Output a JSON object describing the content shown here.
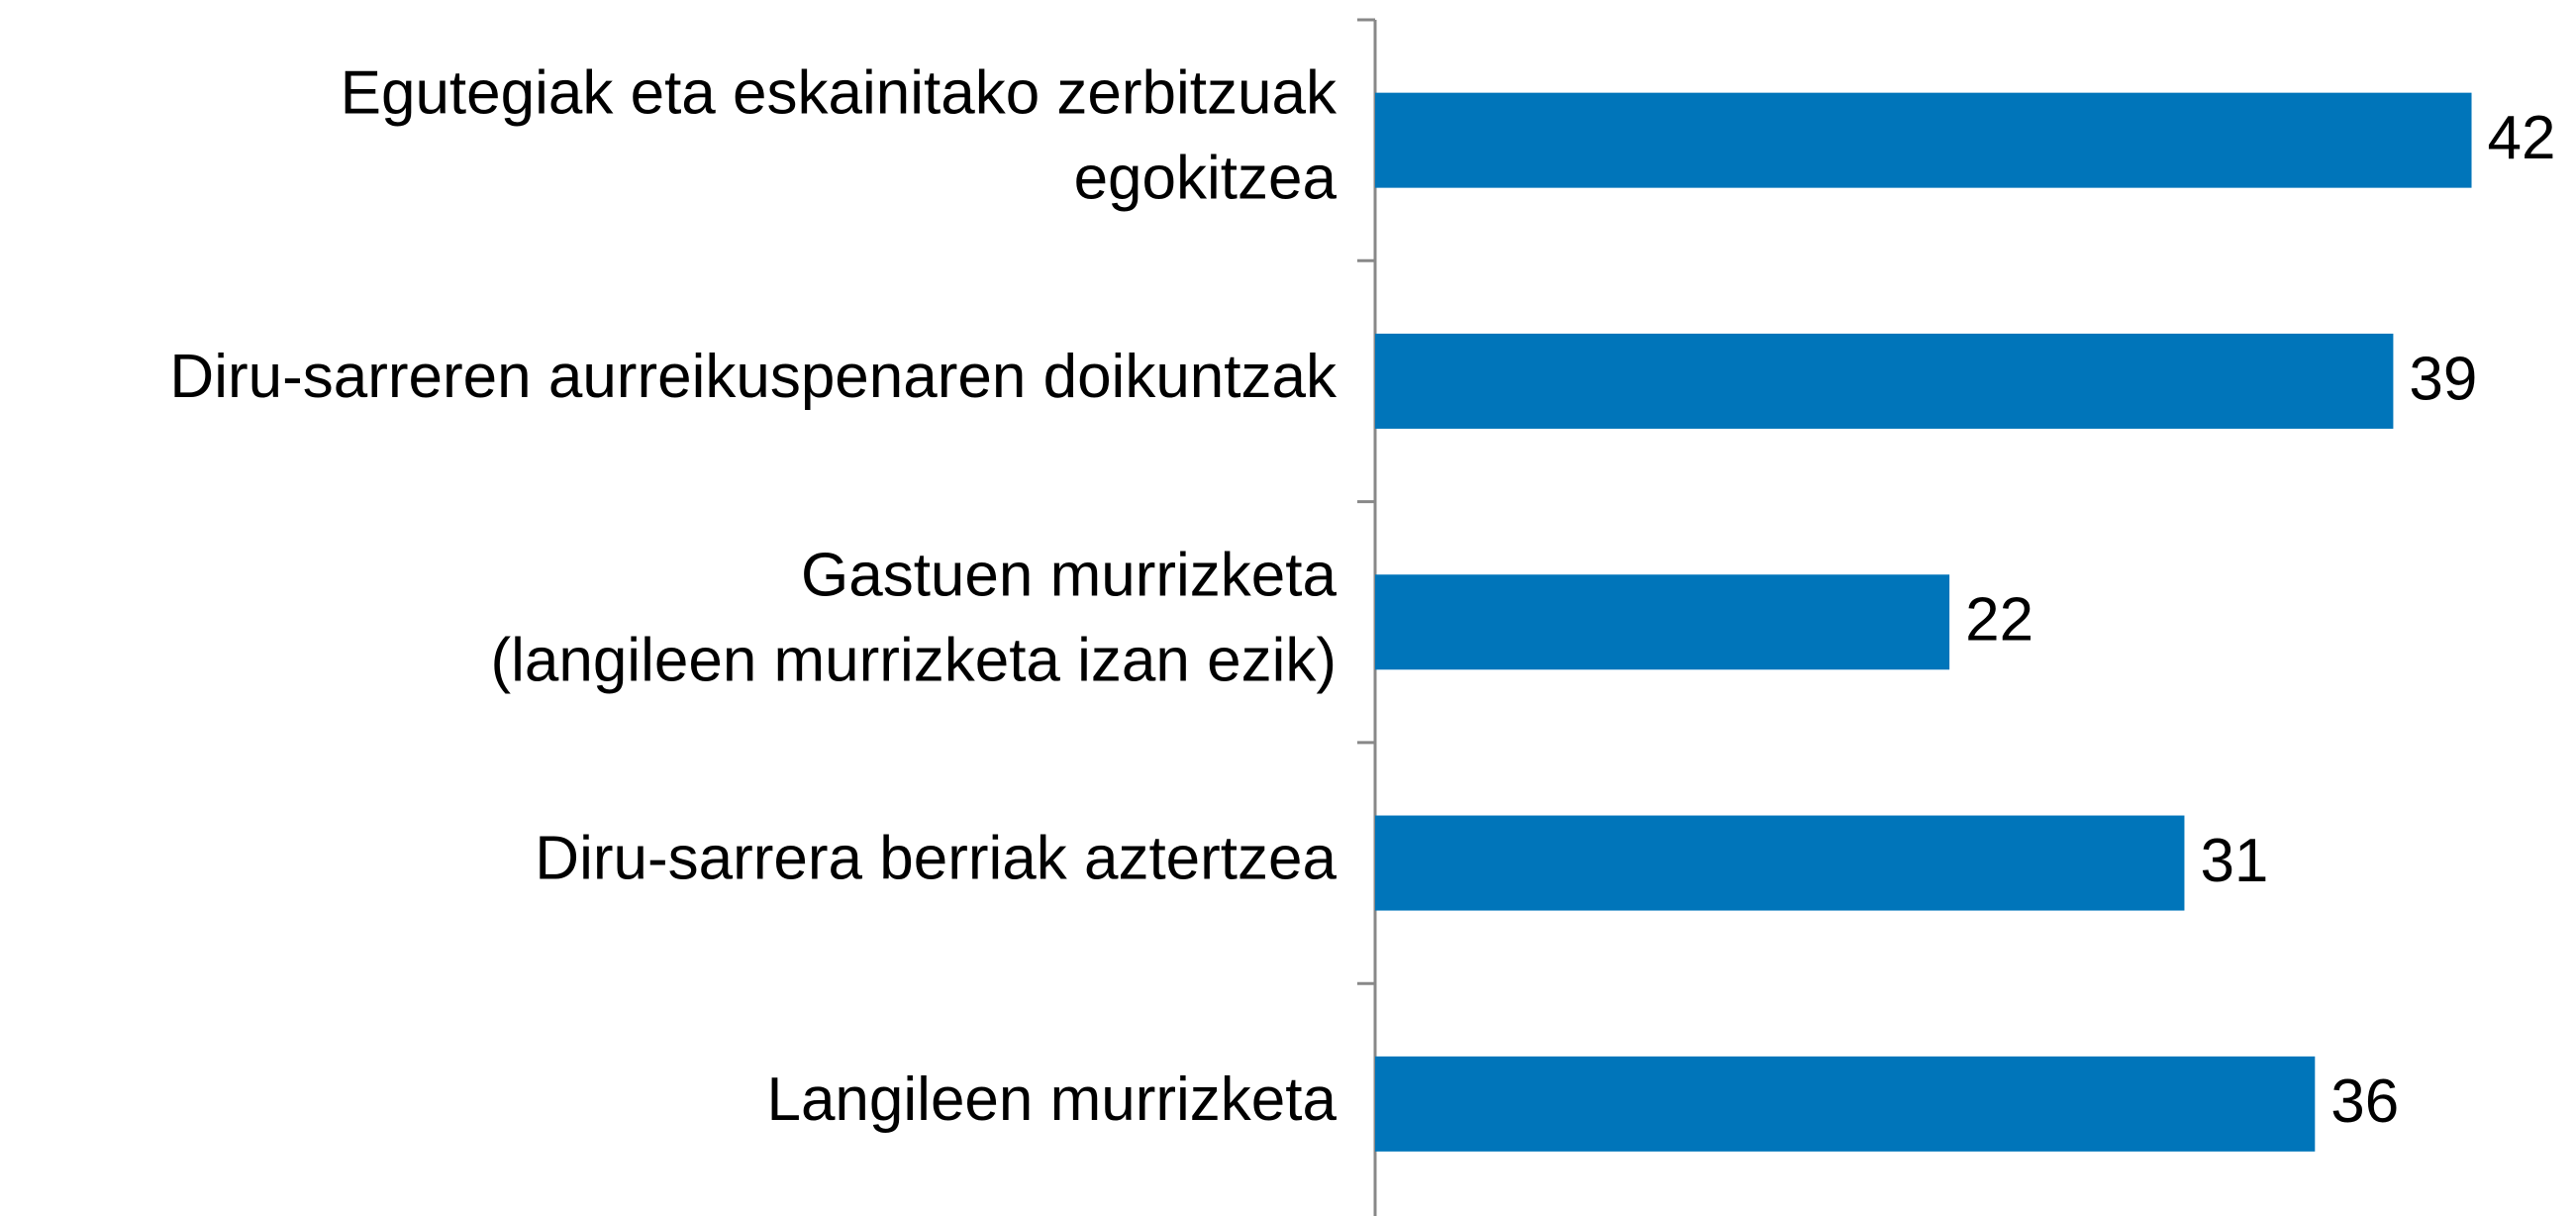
{
  "chart_data": {
    "type": "bar",
    "orientation": "horizontal",
    "categories": [
      "Egutegiak eta eskainitako zerbitzuak\negokitzea",
      "Diru-sarreren aurreikuspenaren doikuntzak",
      "Gastuen murrizketa\n(langileen murrizketa izan ezik)",
      "Diru-sarrera berriak aztertzea",
      "Langileen murrizketa"
    ],
    "values": [
      42,
      39,
      22,
      31,
      36
    ],
    "color": "#0075ba",
    "xlim": [
      0,
      46
    ]
  }
}
